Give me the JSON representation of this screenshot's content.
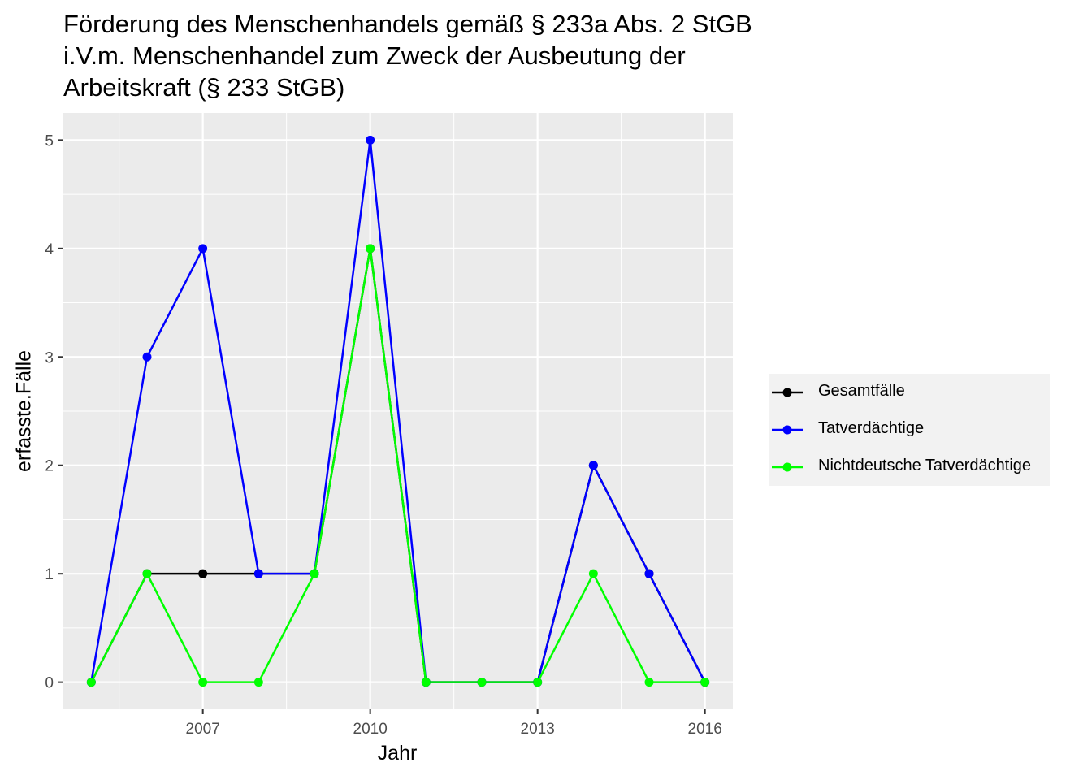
{
  "title_lines": [
    "Förderung des Menschenhandels gemäß § 233a Abs. 2 StGB",
    "i.V.m. Menschenhandel zum Zweck der Ausbeutung der",
    "Arbeitskraft (§ 233 StGB)"
  ],
  "chart_data": {
    "type": "line",
    "title": "Förderung des Menschenhandels gemäß § 233a Abs. 2 StGB i.V.m. Menschenhandel zum Zweck der Ausbeutung der Arbeitskraft (§ 233 StGB)",
    "xlabel": "Jahr",
    "ylabel": "erfasste.Fälle",
    "x": [
      2005,
      2006,
      2007,
      2008,
      2009,
      2010,
      2011,
      2012,
      2013,
      2014,
      2015,
      2016
    ],
    "xlim": [
      2004.5,
      2016.5
    ],
    "ylim": [
      -0.25,
      5.25
    ],
    "x_ticks": [
      2007,
      2010,
      2013,
      2016
    ],
    "y_ticks": [
      0,
      1,
      2,
      3,
      4,
      5
    ],
    "grid": true,
    "legend_position": "right",
    "series": [
      {
        "name": "Gesamtfälle",
        "color": "#000000",
        "values": [
          0,
          1,
          1,
          1,
          1,
          4,
          0,
          0,
          0,
          2,
          1,
          0
        ]
      },
      {
        "name": "Tatverdächtige",
        "color": "#0000ff",
        "values": [
          0,
          3,
          4,
          1,
          1,
          5,
          0,
          0,
          0,
          2,
          1,
          0
        ]
      },
      {
        "name": "Nichtdeutsche Tatverdächtige",
        "color": "#00ff00",
        "values": [
          0,
          1,
          0,
          0,
          1,
          4,
          0,
          0,
          0,
          1,
          0,
          0
        ]
      }
    ]
  }
}
